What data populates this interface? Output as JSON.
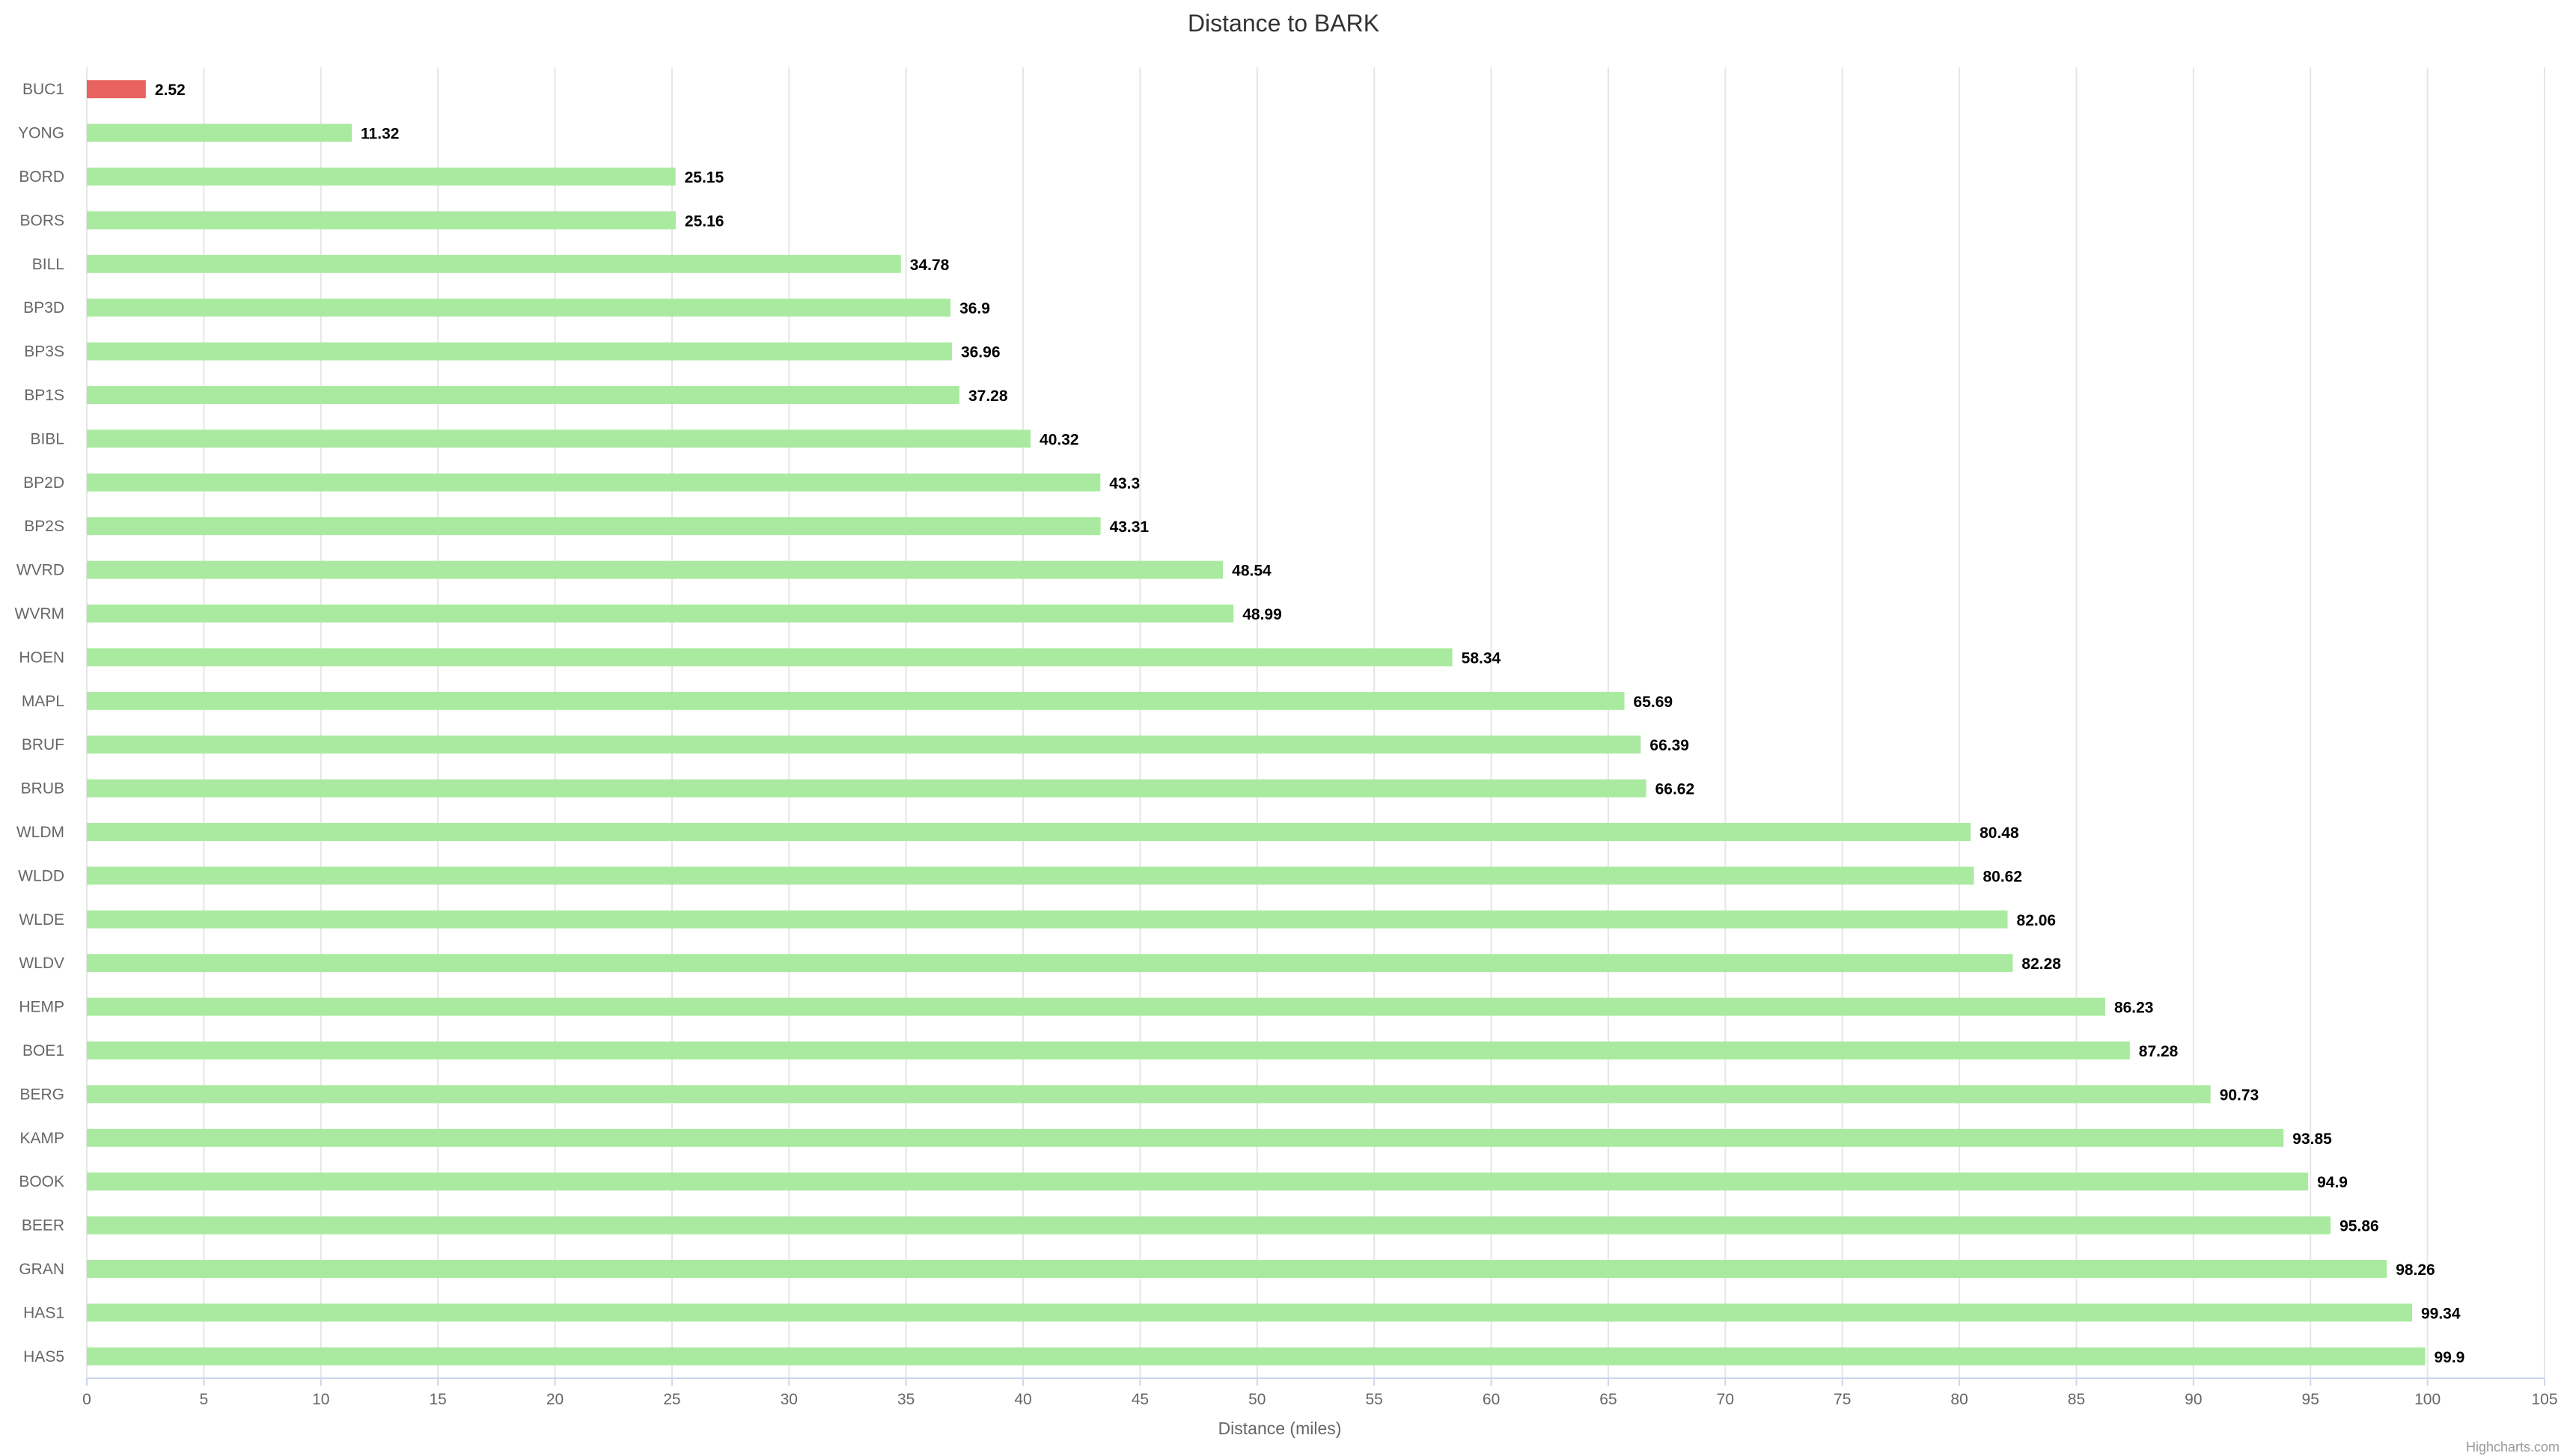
{
  "chart_data": {
    "type": "bar",
    "orientation": "horizontal",
    "title": "Distance to BARK",
    "xlabel": "Distance (miles)",
    "credits": "Highcharts.com",
    "xlim": [
      0,
      105
    ],
    "tick_step": 5,
    "grid": true,
    "colors": {
      "highlight": "#e8625f",
      "default": "#aaeaa0"
    },
    "categories": [
      "BUC1",
      "YONG",
      "BORD",
      "BORS",
      "BILL",
      "BP3D",
      "BP3S",
      "BP1S",
      "BIBL",
      "BP2D",
      "BP2S",
      "WVRD",
      "WVRM",
      "HOEN",
      "MAPL",
      "BRUF",
      "BRUB",
      "WLDM",
      "WLDD",
      "WLDE",
      "WLDV",
      "HEMP",
      "BOE1",
      "BERG",
      "KAMP",
      "BOOK",
      "BEER",
      "GRAN",
      "HAS1",
      "HAS5"
    ],
    "values": [
      2.52,
      11.32,
      25.15,
      25.16,
      34.78,
      36.9,
      36.96,
      37.28,
      40.32,
      43.3,
      43.31,
      48.54,
      48.99,
      58.34,
      65.69,
      66.39,
      66.62,
      80.48,
      80.62,
      82.06,
      82.28,
      86.23,
      87.28,
      90.73,
      93.85,
      94.9,
      95.86,
      98.26,
      99.34,
      99.9
    ],
    "highlighted_categories": [
      "BUC1"
    ]
  }
}
